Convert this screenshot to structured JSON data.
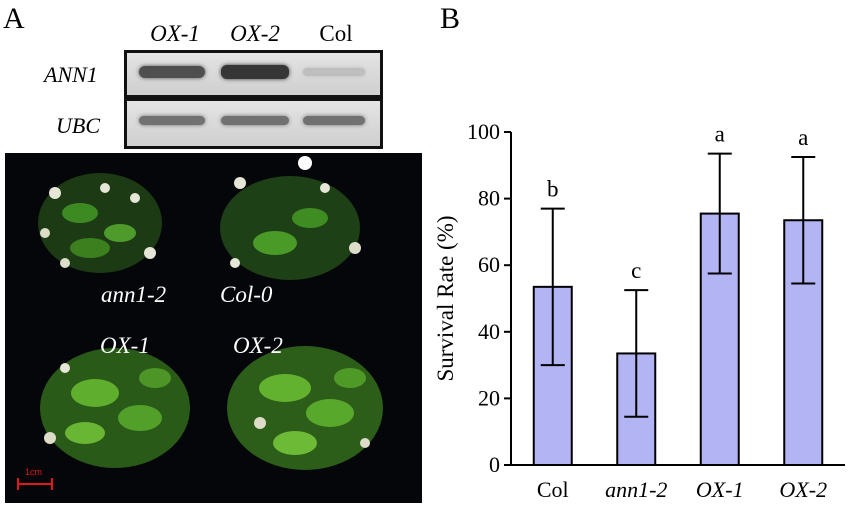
{
  "panel_a": {
    "letter": "A",
    "gel": {
      "lanes": [
        "OX-1",
        "OX-2",
        "Col"
      ],
      "rows": [
        {
          "label": "ANN1",
          "band_intensity": [
            0.8,
            0.95,
            0.15
          ]
        },
        {
          "label": "UBC",
          "band_intensity": [
            0.6,
            0.6,
            0.6
          ]
        }
      ]
    },
    "photo": {
      "labels": [
        "ann1-2",
        "Col-0",
        "OX-1",
        "OX-2"
      ],
      "scale_bar": "1cm"
    }
  },
  "panel_b": {
    "letter": "B"
  },
  "chart_data": {
    "type": "bar",
    "categories": [
      "Col",
      "ann1-2",
      "OX-1",
      "OX-2"
    ],
    "category_italic": [
      false,
      true,
      true,
      true
    ],
    "values": [
      53.5,
      33.5,
      75.5,
      73.5
    ],
    "errors": [
      23.5,
      19,
      18,
      19
    ],
    "significance": [
      "b",
      "c",
      "a",
      "a"
    ],
    "xlabel": "",
    "ylabel": "Survival Rate (%)",
    "ylim": [
      0,
      100
    ],
    "yticks": [
      0,
      20,
      40,
      60,
      80,
      100
    ],
    "bar_color": "#b3b4f4",
    "grid": false
  }
}
